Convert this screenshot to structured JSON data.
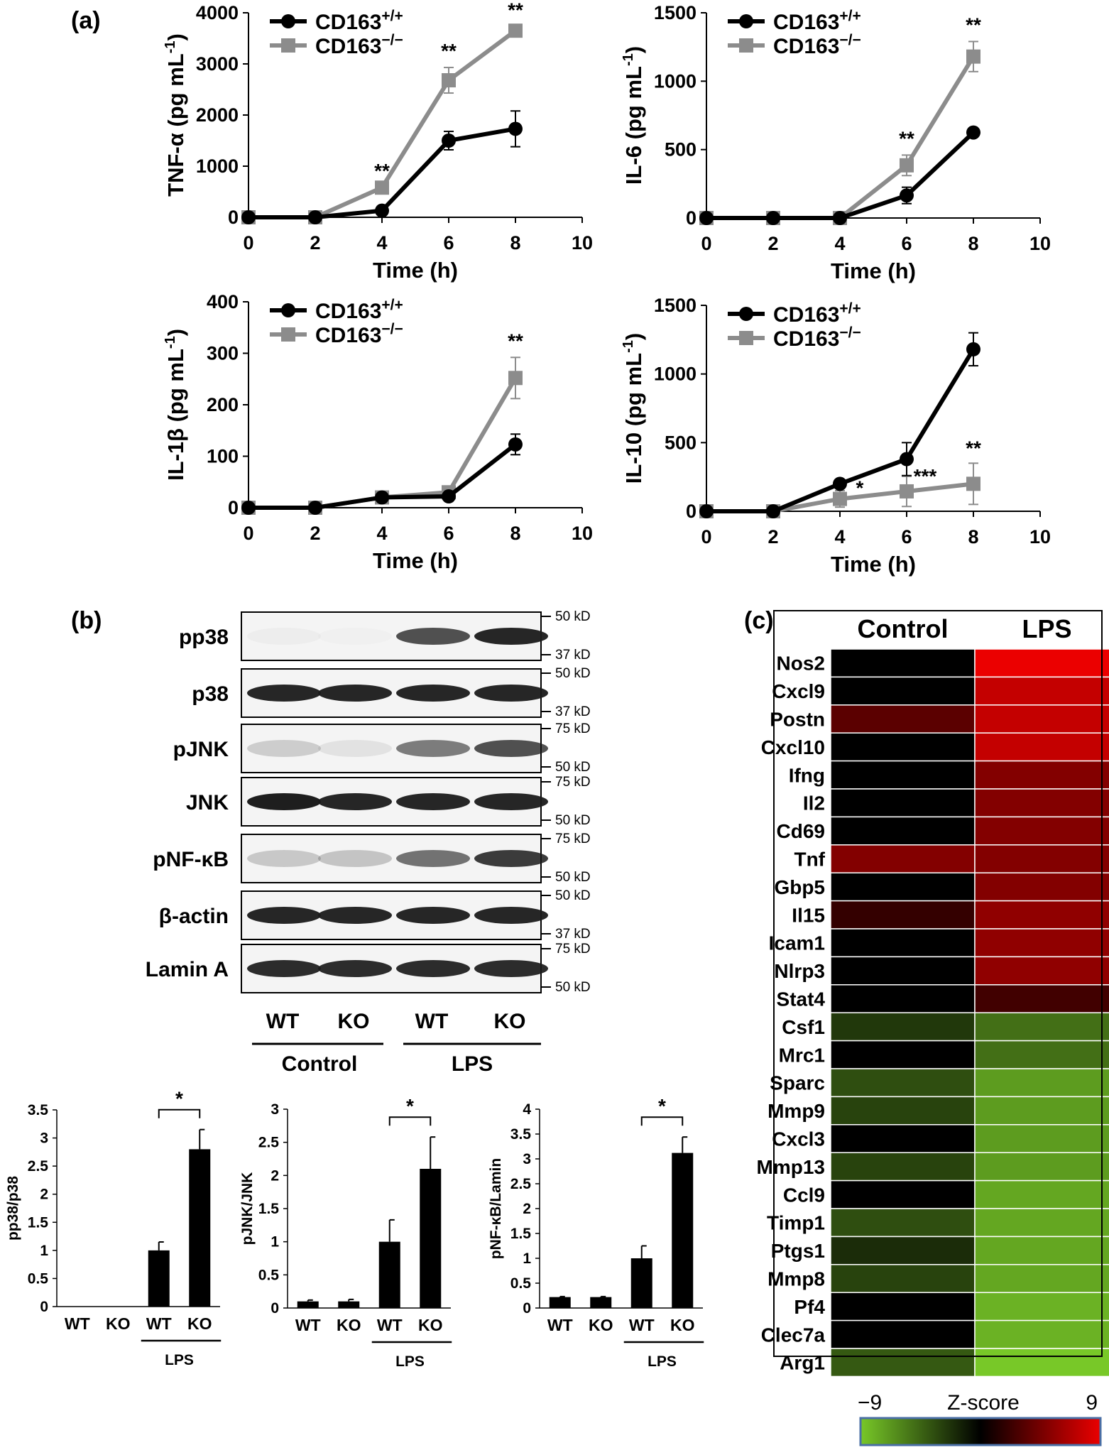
{
  "panels": {
    "a": "(a)",
    "b": "(b)",
    "c": "(c)"
  },
  "line_charts": [
    {
      "ylabel": "TNF-α (pg mL⁻¹)",
      "xlabel": "Time (h)",
      "yticks": [
        0,
        1000,
        2000,
        3000,
        4000
      ],
      "ylim": [
        0,
        4000
      ]
    },
    {
      "ylabel": "IL-6 (pg mL⁻¹)",
      "xlabel": "Time (h)",
      "yticks": [
        0,
        500,
        1000,
        1500
      ],
      "ylim": [
        0,
        1500
      ]
    },
    {
      "ylabel": "IL-1β (pg mL⁻¹)",
      "xlabel": "Time (h)",
      "yticks": [
        0,
        100,
        200,
        300,
        400
      ],
      "ylim": [
        0,
        400
      ]
    },
    {
      "ylabel": "IL-10 (pg mL⁻¹)",
      "xlabel": "Time (h)",
      "yticks": [
        0,
        500,
        1000,
        1500
      ],
      "ylim": [
        0,
        1500
      ]
    }
  ],
  "legend": {
    "wt": "CD163+/+",
    "ko": "CD163−/−"
  },
  "blot": {
    "rows": [
      {
        "label": "pp38",
        "kd_top": "50 kD",
        "kd_bottom": "37 kD"
      },
      {
        "label": "p38",
        "kd_top": "50 kD",
        "kd_bottom": "37 kD"
      },
      {
        "label": "pJNK",
        "kd_top": "75 kD",
        "kd_bottom": "50 kD"
      },
      {
        "label": "JNK",
        "kd_top": "75 kD",
        "kd_bottom": "50 kD"
      },
      {
        "label": "pNF-κB",
        "kd_top": "75 kD",
        "kd_bottom": "50 kD"
      },
      {
        "label": "β-actin",
        "kd_top": "50 kD",
        "kd_bottom": "37 kD"
      },
      {
        "label": "Lamin A",
        "kd_top": "75 kD",
        "kd_bottom": "50 kD"
      }
    ],
    "lanes": [
      "WT",
      "KO",
      "WT",
      "KO"
    ],
    "groups": [
      "Control",
      "LPS"
    ]
  },
  "heatmap": {
    "columns": [
      "Control",
      "LPS"
    ],
    "genes": [
      "Nos2",
      "Cxcl9",
      "Postn",
      "Cxcl10",
      "Ifng",
      "Il2",
      "Cd69",
      "Tnf",
      "Gbp5",
      "Il15",
      "Icam1",
      "Nlrp3",
      "Stat4",
      "Csf1",
      "Mrc1",
      "Sparc",
      "Mmp9",
      "Cxcl3",
      "Mmp13",
      "Ccl9",
      "Timp1",
      "Ptgs1",
      "Mmp8",
      "Pf4",
      "Clec7a",
      "Arg1"
    ],
    "colorbar": {
      "min": "−9",
      "max": "9",
      "label": "Z-score"
    }
  },
  "chart_data": [
    {
      "type": "line",
      "title": "",
      "xlabel": "Time (h)",
      "ylabel": "TNF-α (pg mL⁻¹)",
      "x": [
        0,
        2,
        4,
        6,
        8
      ],
      "xlim": [
        0,
        10
      ],
      "ylim": [
        0,
        4000
      ],
      "series": [
        {
          "name": "CD163+/+",
          "color": "#000000",
          "values": [
            0,
            0,
            130,
            1500,
            1730
          ],
          "errors": [
            0,
            0,
            0,
            180,
            350
          ]
        },
        {
          "name": "CD163−/−",
          "color": "#8c8c8c",
          "values": [
            0,
            0,
            580,
            2680,
            3650
          ],
          "errors": [
            0,
            0,
            0,
            250,
            80
          ]
        }
      ],
      "annotations": [
        {
          "x": 4,
          "text": "**"
        },
        {
          "x": 6,
          "text": "**"
        },
        {
          "x": 8,
          "text": "**"
        }
      ],
      "legend": "top-left",
      "grid": false
    },
    {
      "type": "line",
      "title": "",
      "xlabel": "Time (h)",
      "ylabel": "IL-6 (pg mL⁻¹)",
      "x": [
        0,
        2,
        4,
        6,
        8
      ],
      "xlim": [
        0,
        10
      ],
      "ylim": [
        0,
        1500
      ],
      "series": [
        {
          "name": "CD163+/+",
          "color": "#000000",
          "values": [
            0,
            0,
            0,
            165,
            625
          ],
          "errors": [
            0,
            0,
            0,
            60,
            30
          ]
        },
        {
          "name": "CD163−/−",
          "color": "#8c8c8c",
          "values": [
            0,
            0,
            0,
            385,
            1180
          ],
          "errors": [
            0,
            0,
            0,
            75,
            110
          ]
        }
      ],
      "annotations": [
        {
          "x": 6,
          "text": "**"
        },
        {
          "x": 8,
          "text": "**"
        }
      ],
      "legend": "top-left",
      "grid": false
    },
    {
      "type": "line",
      "title": "",
      "xlabel": "Time (h)",
      "ylabel": "IL-1β (pg mL⁻¹)",
      "x": [
        0,
        2,
        4,
        6,
        8
      ],
      "xlim": [
        0,
        10
      ],
      "ylim": [
        0,
        400
      ],
      "series": [
        {
          "name": "CD163+/+",
          "color": "#000000",
          "values": [
            0,
            0,
            20,
            22,
            123
          ],
          "errors": [
            0,
            0,
            0,
            0,
            20
          ]
        },
        {
          "name": "CD163−/−",
          "color": "#8c8c8c",
          "values": [
            0,
            0,
            20,
            30,
            252
          ],
          "errors": [
            0,
            0,
            0,
            0,
            40
          ]
        }
      ],
      "annotations": [
        {
          "x": 8,
          "text": "**"
        }
      ],
      "legend": "top-left",
      "grid": false
    },
    {
      "type": "line",
      "title": "",
      "xlabel": "Time (h)",
      "ylabel": "IL-10 (pg mL⁻¹)",
      "x": [
        0,
        2,
        4,
        6,
        8
      ],
      "xlim": [
        0,
        10
      ],
      "ylim": [
        0,
        1500
      ],
      "series": [
        {
          "name": "CD163+/+",
          "color": "#000000",
          "values": [
            0,
            0,
            200,
            380,
            1180
          ],
          "errors": [
            0,
            0,
            0,
            120,
            120
          ]
        },
        {
          "name": "CD163−/−",
          "color": "#8c8c8c",
          "values": [
            0,
            0,
            90,
            145,
            200
          ],
          "errors": [
            0,
            0,
            60,
            110,
            150
          ]
        }
      ],
      "annotations": [
        {
          "x": 4,
          "text": "*"
        },
        {
          "x": 6,
          "text": "***"
        },
        {
          "x": 8,
          "text": "**"
        }
      ],
      "legend": "top-left",
      "grid": false
    },
    {
      "type": "bar",
      "title": "",
      "xlabel": "",
      "ylabel": "pp38/p38",
      "categories": [
        "WT",
        "KO",
        "WT",
        "KO"
      ],
      "group_label": "LPS",
      "values": [
        0,
        0,
        1.0,
        2.8
      ],
      "errors": [
        0,
        0,
        0.15,
        0.35
      ],
      "ylim": [
        0,
        3.5
      ],
      "yticks": [
        0,
        0.5,
        1,
        1.5,
        2,
        2.5,
        3,
        3.5
      ],
      "significance": "*"
    },
    {
      "type": "bar",
      "title": "",
      "xlabel": "",
      "ylabel": "pJNK/JNK",
      "categories": [
        "WT",
        "KO",
        "WT",
        "KO"
      ],
      "group_label": "LPS",
      "values": [
        0.1,
        0.1,
        1.0,
        2.1
      ],
      "errors": [
        0.02,
        0.03,
        0.33,
        0.48
      ],
      "ylim": [
        0,
        3
      ],
      "yticks": [
        0,
        0.5,
        1,
        1.5,
        2,
        2.5,
        3
      ],
      "significance": "*"
    },
    {
      "type": "bar",
      "title": "",
      "xlabel": "",
      "ylabel": "pNF-κB/Lamin",
      "categories": [
        "WT",
        "KO",
        "WT",
        "KO"
      ],
      "group_label": "LPS",
      "values": [
        0.22,
        0.22,
        1.0,
        3.12
      ],
      "errors": [
        0.01,
        0.01,
        0.25,
        0.32
      ],
      "ylim": [
        0,
        4
      ],
      "yticks": [
        0,
        0.5,
        1,
        1.5,
        2,
        2.5,
        3,
        3.5,
        4
      ],
      "significance": "*"
    },
    {
      "type": "heatmap",
      "title": "",
      "columns": [
        "Control",
        "LPS"
      ],
      "rows": [
        "Nos2",
        "Cxcl9",
        "Postn",
        "Cxcl10",
        "Ifng",
        "Il2",
        "Cd69",
        "Tnf",
        "Gbp5",
        "Il15",
        "Icam1",
        "Nlrp3",
        "Stat4",
        "Csf1",
        "Mrc1",
        "Sparc",
        "Mmp9",
        "Cxcl3",
        "Mmp13",
        "Ccl9",
        "Timp1",
        "Ptgs1",
        "Mmp8",
        "Pf4",
        "Clec7a",
        "Arg1"
      ],
      "values": [
        [
          0,
          9
        ],
        [
          0,
          7.5
        ],
        [
          3.5,
          7.5
        ],
        [
          0,
          7.5
        ],
        [
          0,
          5
        ],
        [
          0,
          5
        ],
        [
          0,
          5
        ],
        [
          5,
          5
        ],
        [
          0,
          5
        ],
        [
          2,
          5.5
        ],
        [
          0,
          5.5
        ],
        [
          0,
          5.5
        ],
        [
          0,
          2.5
        ],
        [
          -2.5,
          -5
        ],
        [
          0,
          -5
        ],
        [
          -3.5,
          -7
        ],
        [
          -3,
          -7
        ],
        [
          0,
          -7
        ],
        [
          -3,
          -7
        ],
        [
          0,
          -7.5
        ],
        [
          -3.5,
          -7.5
        ],
        [
          -2,
          -7.5
        ],
        [
          -3,
          -7.5
        ],
        [
          0,
          -8
        ],
        [
          0,
          -8
        ],
        [
          -4,
          -9
        ]
      ],
      "zlim": [
        -9,
        9
      ],
      "colorbar_label": "Z-score"
    }
  ]
}
